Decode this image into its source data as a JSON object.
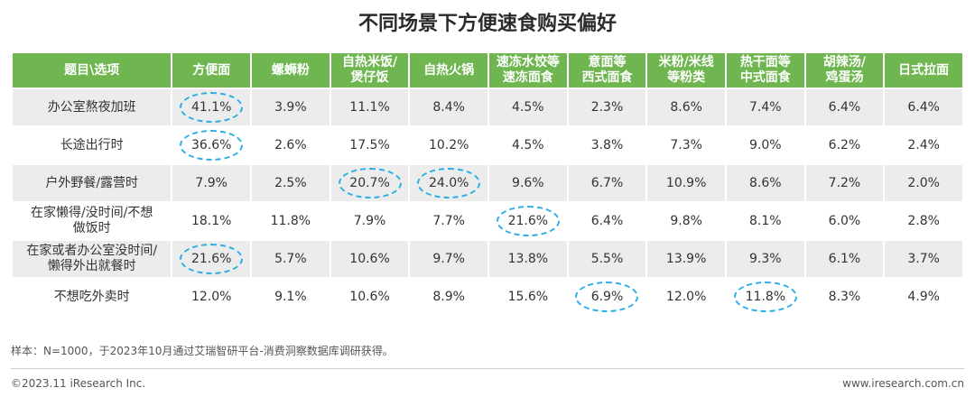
{
  "title": "不同场景下方便速食购买偏好",
  "chart_data": {
    "type": "table",
    "title": "不同场景下方便速食购买偏好",
    "corner_header": "题目\\选项",
    "columns": [
      "方便面",
      "螺蛳粉",
      "自热米饭/\n煲仔饭",
      "自热火锅",
      "速冻水饺等\n速冻面食",
      "意面等\n西式面食",
      "米粉/米线\n等粉类",
      "热干面等\n中式面食",
      "胡辣汤/\n鸡蛋汤",
      "日式拉面"
    ],
    "rows": [
      {
        "label": "办公室熬夜加班",
        "values": [
          "41.1%",
          "3.9%",
          "11.1%",
          "8.4%",
          "4.5%",
          "2.3%",
          "8.6%",
          "7.4%",
          "6.4%",
          "6.4%"
        ],
        "highlight": [
          0
        ]
      },
      {
        "label": "长途出行时",
        "values": [
          "36.6%",
          "2.6%",
          "17.5%",
          "10.2%",
          "4.5%",
          "3.8%",
          "7.3%",
          "9.0%",
          "6.2%",
          "2.4%"
        ],
        "highlight": [
          0
        ]
      },
      {
        "label": "户外野餐/露营时",
        "values": [
          "7.9%",
          "2.5%",
          "20.7%",
          "24.0%",
          "9.6%",
          "6.7%",
          "10.9%",
          "8.6%",
          "7.2%",
          "2.0%"
        ],
        "highlight": [
          2,
          3
        ]
      },
      {
        "label": "在家懒得/没时间/不想\n做饭时",
        "values": [
          "18.1%",
          "11.8%",
          "7.9%",
          "7.7%",
          "21.6%",
          "6.4%",
          "9.8%",
          "8.1%",
          "6.0%",
          "2.8%"
        ],
        "highlight": [
          4
        ]
      },
      {
        "label": "在家或者办公室没时间/\n懒得外出就餐时",
        "values": [
          "21.6%",
          "5.7%",
          "10.6%",
          "9.7%",
          "13.8%",
          "5.5%",
          "13.9%",
          "9.3%",
          "6.1%",
          "3.7%"
        ],
        "highlight": [
          0
        ]
      },
      {
        "label": "不想吃外卖时",
        "values": [
          "12.0%",
          "9.1%",
          "10.6%",
          "8.9%",
          "15.6%",
          "6.9%",
          "12.0%",
          "11.8%",
          "8.3%",
          "4.9%"
        ],
        "highlight": [
          5,
          7
        ]
      }
    ],
    "colors": {
      "header": "#6fb650",
      "stripe": "#ececec",
      "highlight_ring": "#29aee6"
    }
  },
  "source": "样本：N=1000，于2023年10月通过艾瑞智研平台-消费洞察数据库调研获得。",
  "footer": {
    "copyright": "©2023.11 iResearch Inc.",
    "website": "www.iresearch.com.cn"
  }
}
